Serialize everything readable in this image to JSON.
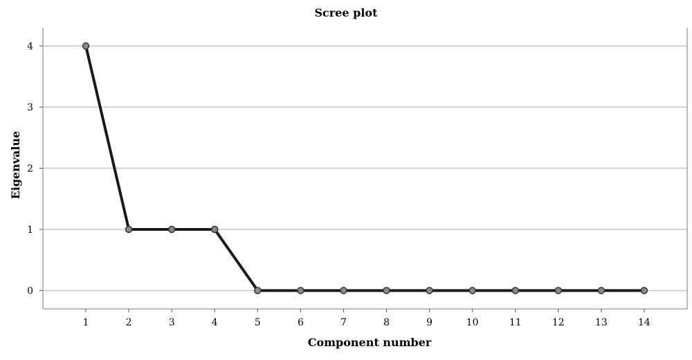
{
  "chart_data": {
    "type": "line",
    "title": "Scree plot",
    "xlabel": "Component number",
    "ylabel": "Eigenvalue",
    "x": [
      1,
      2,
      3,
      4,
      5,
      6,
      7,
      8,
      9,
      10,
      11,
      12,
      13,
      14
    ],
    "y": [
      4,
      1,
      1,
      1,
      0,
      0,
      0,
      0,
      0,
      0,
      0,
      0,
      0,
      0
    ],
    "x_ticks": [
      "1",
      "2",
      "3",
      "4",
      "5",
      "6",
      "7",
      "8",
      "9",
      "10",
      "11",
      "12",
      "13",
      "14"
    ],
    "y_ticks": [
      "0",
      "1",
      "2",
      "3",
      "4"
    ],
    "xlim": [
      0,
      15
    ],
    "ylim": [
      -0.3,
      4.3
    ],
    "grid": "horizontal",
    "colors": {
      "line": "#1a1a1a",
      "marker_fill": "#8a8a8a",
      "gridline": "#c8c8c8"
    }
  }
}
